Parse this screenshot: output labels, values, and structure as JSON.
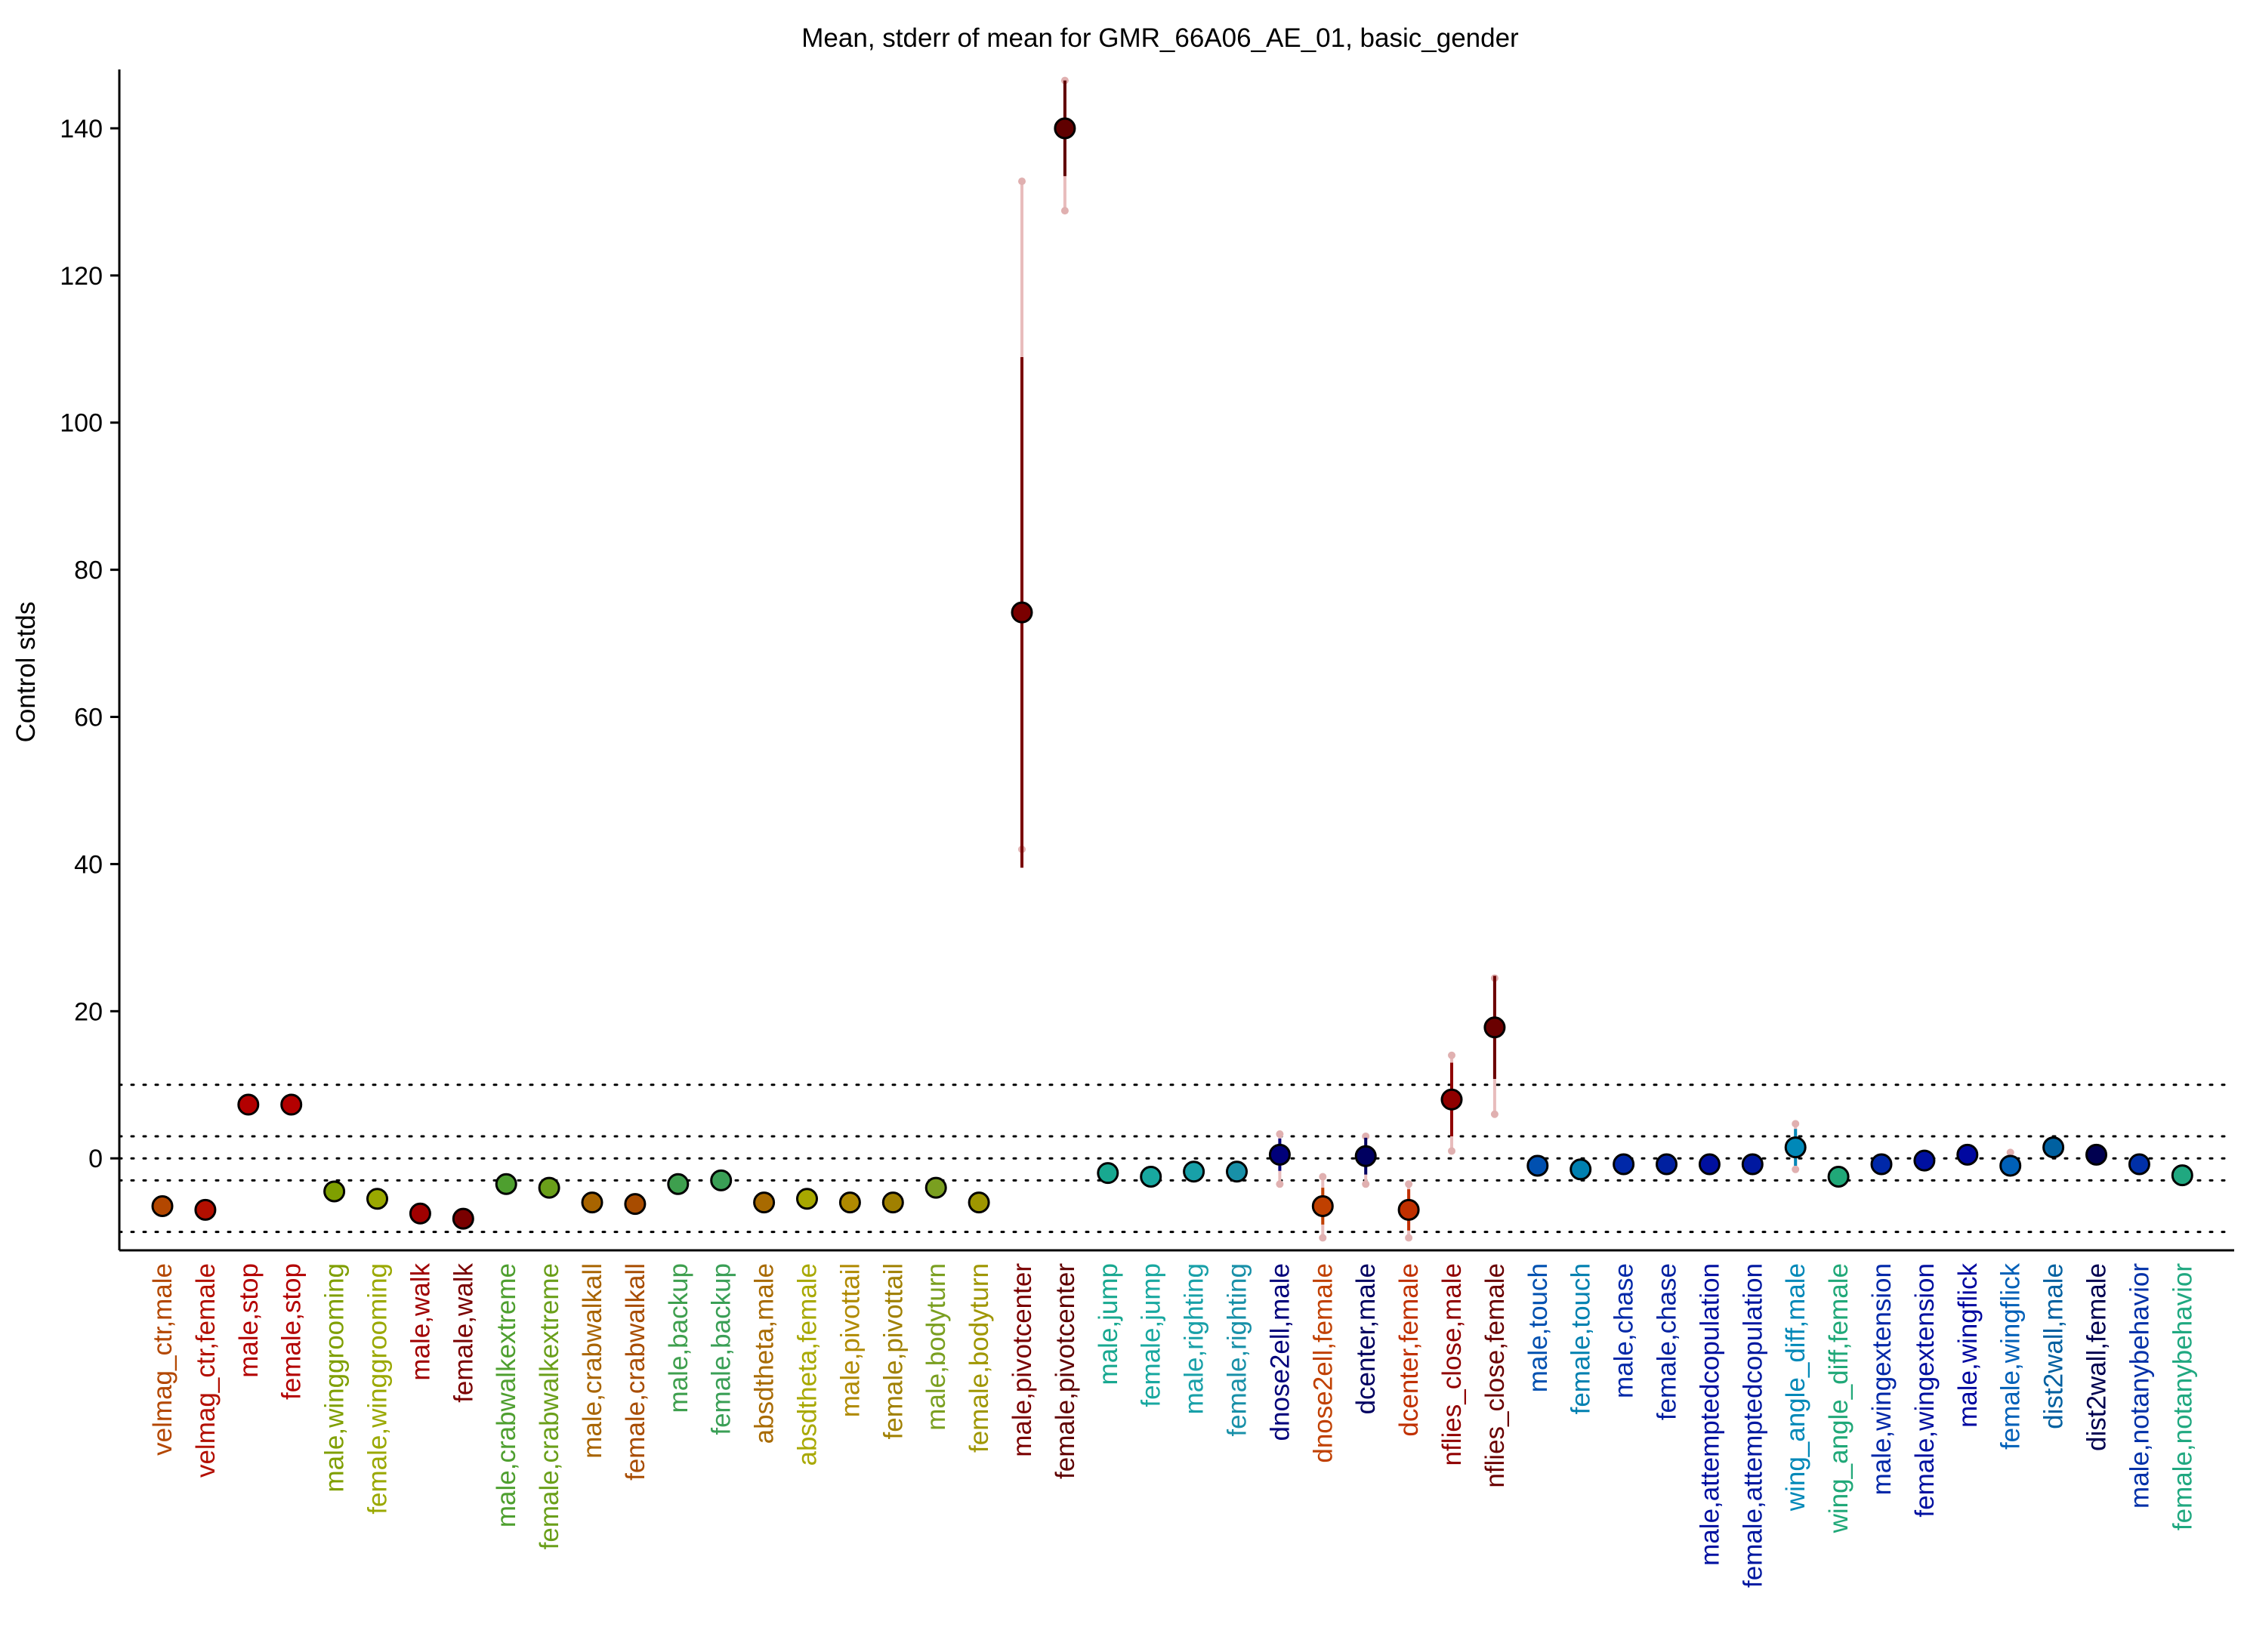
{
  "chart_data": {
    "type": "scatter",
    "title": "Mean, stderr of mean for GMR_66A06_AE_01, basic_gender",
    "xlabel": "",
    "ylabel": "Control stds",
    "ylim": [
      -12.5,
      148
    ],
    "yticks": [
      0,
      20,
      40,
      60,
      80,
      100,
      120,
      140
    ],
    "reference_lines": [
      10,
      3,
      0,
      -3,
      -10
    ],
    "grid": false,
    "categories": [
      "velmag_ctr,male",
      "velmag_ctr,female",
      "male,stop",
      "female,stop",
      "male,winggrooming",
      "female,winggrooming",
      "male,walk",
      "female,walk",
      "male,crabwalkextreme",
      "female,crabwalkextreme",
      "male,crabwalkall",
      "female,crabwalkall",
      "male,backup",
      "female,backup",
      "absdtheta,male",
      "absdtheta,female",
      "male,pivottail",
      "female,pivottail",
      "male,bodyturn",
      "female,bodyturn",
      "male,pivotcenter",
      "female,pivotcenter",
      "male,jump",
      "female,jump",
      "male,righting",
      "female,righting",
      "dnose2ell,male",
      "dnose2ell,female",
      "dcenter,male",
      "dcenter,female",
      "nflies_close,male",
      "nflies_close,female",
      "male,touch",
      "female,touch",
      "male,chase",
      "female,chase",
      "male,attemptedcopulation",
      "female,attemptedcopulation",
      "wing_angle_diff,male",
      "wing_angle_diff,female",
      "male,wingextension",
      "female,wingextension",
      "male,wingflick",
      "female,wingflick",
      "dist2wall,male",
      "dist2wall,female",
      "male,notanybehavior",
      "female,notanybehavior"
    ],
    "values": [
      -6.5,
      -7,
      7.3,
      7.3,
      -4.5,
      -5.5,
      -7.5,
      -8.2,
      -3.5,
      -4,
      -6,
      -6.2,
      -3.5,
      -3,
      -6,
      -5.5,
      -6,
      -6,
      -4,
      -6,
      74.2,
      140,
      -2,
      -2.5,
      -1.8,
      -1.8,
      0.5,
      -6.5,
      0.3,
      -7,
      8,
      17.8,
      -1,
      -1.5,
      -0.8,
      -0.8,
      -0.8,
      -0.8,
      1.5,
      -2.5,
      -0.8,
      -0.3,
      0.5,
      -1,
      1.5,
      0.5,
      -0.8,
      -2.3
    ],
    "stderr": [
      0,
      0,
      0,
      0,
      0,
      0,
      0,
      0,
      0,
      0,
      0,
      0,
      0,
      0,
      0,
      0,
      0,
      0,
      0,
      0,
      34.7,
      6.5,
      0,
      0,
      0,
      0,
      2.2,
      2.5,
      2.5,
      2.8,
      5,
      7,
      0,
      0,
      0,
      0,
      0,
      0,
      2.5,
      0,
      0,
      0,
      0,
      0,
      0,
      0,
      0,
      0
    ],
    "spread": [
      0,
      0,
      0,
      0,
      0,
      0,
      0,
      0,
      0,
      0,
      0,
      0,
      0,
      0,
      0,
      0,
      0,
      0,
      0,
      0,
      0,
      0,
      0,
      0,
      0,
      0,
      0,
      0,
      0,
      0,
      0,
      0,
      0,
      0,
      0,
      0,
      0,
      0,
      0,
      0,
      0,
      0,
      0,
      0,
      0,
      0,
      0,
      0
    ],
    "spread_ranges": [
      null,
      null,
      null,
      null,
      null,
      null,
      null,
      null,
      null,
      null,
      null,
      null,
      null,
      null,
      null,
      null,
      null,
      null,
      null,
      null,
      [
        42,
        132.8
      ],
      [
        128.8,
        146.5
      ],
      null,
      null,
      null,
      null,
      [
        -3.5,
        3.3
      ],
      [
        -10.8,
        -2.5
      ],
      [
        -3.5,
        3
      ],
      [
        -10.8,
        -3.5
      ],
      [
        1,
        14
      ],
      [
        6,
        24.5
      ],
      null,
      null,
      null,
      null,
      null,
      null,
      [
        -1.5,
        4.7
      ],
      null,
      null,
      null,
      null,
      [
        -1.5,
        0.8
      ],
      null,
      null,
      null,
      null
    ],
    "point_colors": [
      "#b34700",
      "#b30f00",
      "#b30000",
      "#b30000",
      "#7f9f00",
      "#9aa800",
      "#a00000",
      "#7a0000",
      "#4e9f2f",
      "#6a9f1a",
      "#a86400",
      "#a84c00",
      "#3e9f4e",
      "#3a9f56",
      "#a86a00",
      "#a8a800",
      "#b08a00",
      "#a08000",
      "#7a9f20",
      "#9f9600",
      "#7a0000",
      "#600000",
      "#18a890",
      "#18a8a0",
      "#18a0a8",
      "#1890a8",
      "#00007a",
      "#c04000",
      "#000060",
      "#c03000",
      "#900000",
      "#6a0000",
      "#0050b0",
      "#0080b0",
      "#0028a8",
      "#0020a0",
      "#0010a0",
      "#0018a0",
      "#0088b8",
      "#20a878",
      "#0028a8",
      "#0010a0",
      "#0008a0",
      "#0060b8",
      "#0060a0",
      "#000050",
      "#0030a8",
      "#20a880"
    ],
    "label_colors": [
      "#b34700",
      "#b30f00",
      "#b30000",
      "#b30000",
      "#7f9f00",
      "#9aa800",
      "#a00000",
      "#7a0000",
      "#4e9f2f",
      "#6a9f1a",
      "#a86400",
      "#a84c00",
      "#3e9f4e",
      "#3a9f56",
      "#a86a00",
      "#a8a800",
      "#b08a00",
      "#a08000",
      "#7a9f20",
      "#9f9600",
      "#7a0000",
      "#600000",
      "#18a890",
      "#18a8a0",
      "#18a0a8",
      "#1890a8",
      "#00007a",
      "#c04000",
      "#000060",
      "#c03000",
      "#900000",
      "#6a0000",
      "#0050b0",
      "#0080b0",
      "#0028a8",
      "#0020a0",
      "#0010a0",
      "#0018a0",
      "#0088b8",
      "#20a878",
      "#0028a8",
      "#0010a0",
      "#0008a0",
      "#0060b8",
      "#0060a0",
      "#000050",
      "#0030a8",
      "#20a880"
    ]
  }
}
